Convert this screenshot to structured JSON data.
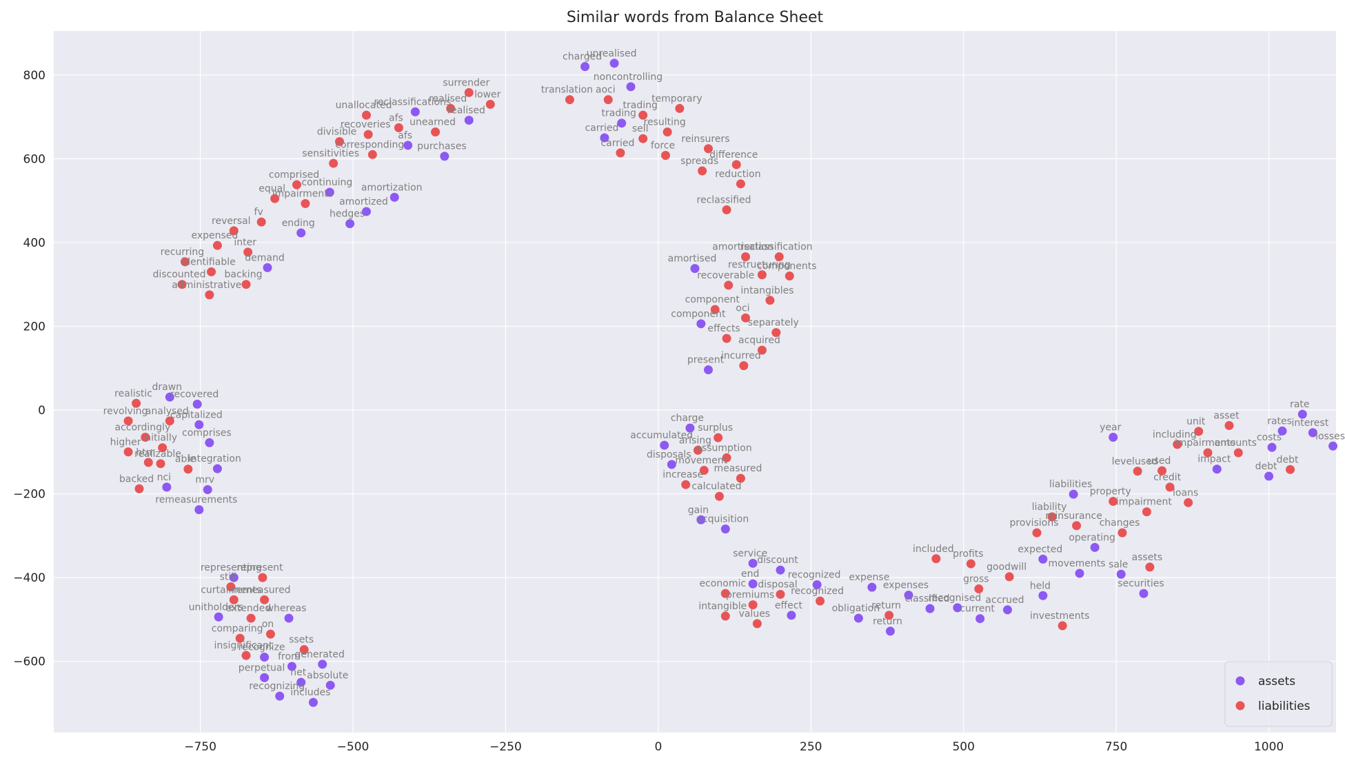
{
  "chart_data": {
    "type": "scatter",
    "title": "Similar words from Balance Sheet",
    "xlabel": "",
    "ylabel": "",
    "xlim": [
      -990,
      1110
    ],
    "ylim": [
      -770,
      905
    ],
    "xticks": [
      -750,
      -500,
      -250,
      0,
      250,
      500,
      750,
      1000
    ],
    "xtick_labels": [
      "−750",
      "−500",
      "−250",
      "0",
      "250",
      "500",
      "750",
      "1000"
    ],
    "yticks": [
      -600,
      -400,
      -200,
      0,
      200,
      400,
      600,
      800
    ],
    "ytick_labels": [
      "−600",
      "−400",
      "−200",
      "0",
      "200",
      "400",
      "600",
      "800"
    ],
    "grid": true,
    "background": "#eaeaf2",
    "grid_color": "#ffffff",
    "legend_position": "lower right",
    "series": [
      {
        "name": "assets",
        "color": "#7b3ff2",
        "points": [
          {
            "label": "charged",
            "x": -120,
            "y": 820
          },
          {
            "label": "unrealised",
            "x": -72,
            "y": 828
          },
          {
            "label": "noncontrolling",
            "x": -45,
            "y": 772
          },
          {
            "label": "trading",
            "x": -60,
            "y": 685
          },
          {
            "label": "carried",
            "x": -88,
            "y": 650
          },
          {
            "label": "reclassifications",
            "x": -398,
            "y": 712
          },
          {
            "label": "realised",
            "x": -310,
            "y": 692
          },
          {
            "label": "afs",
            "x": -410,
            "y": 632
          },
          {
            "label": "purchases",
            "x": -350,
            "y": 606
          },
          {
            "label": "continuing",
            "x": -538,
            "y": 520
          },
          {
            "label": "amortization",
            "x": -432,
            "y": 508
          },
          {
            "label": "amortized",
            "x": -478,
            "y": 474
          },
          {
            "label": "hedges",
            "x": -505,
            "y": 445
          },
          {
            "label": "ending",
            "x": -585,
            "y": 423
          },
          {
            "label": "demand",
            "x": -640,
            "y": 340
          },
          {
            "label": "amortised",
            "x": 60,
            "y": 338
          },
          {
            "label": "component",
            "x": 70,
            "y": 206
          },
          {
            "label": "present",
            "x": 82,
            "y": 96
          },
          {
            "label": "drawn",
            "x": -800,
            "y": 31
          },
          {
            "label": "recovered",
            "x": -755,
            "y": 14
          },
          {
            "label": "capitalized",
            "x": -752,
            "y": -35
          },
          {
            "label": "comprises",
            "x": -735,
            "y": -78
          },
          {
            "label": "integration",
            "x": -722,
            "y": -140
          },
          {
            "label": "nci",
            "x": -805,
            "y": -184
          },
          {
            "label": "mrv",
            "x": -738,
            "y": -190
          },
          {
            "label": "remeasurements",
            "x": -752,
            "y": -238
          },
          {
            "label": "charge",
            "x": 52,
            "y": -43
          },
          {
            "label": "accumulated",
            "x": 10,
            "y": -84
          },
          {
            "label": "disposals",
            "x": 22,
            "y": -130
          },
          {
            "label": "gain",
            "x": 70,
            "y": -262
          },
          {
            "label": "acquisition",
            "x": 110,
            "y": -284
          },
          {
            "label": "representing",
            "x": -695,
            "y": -400
          },
          {
            "label": "unitholders",
            "x": -720,
            "y": -494
          },
          {
            "label": "whereas",
            "x": -605,
            "y": -497
          },
          {
            "label": "recognize",
            "x": -645,
            "y": -590
          },
          {
            "label": "generated",
            "x": -550,
            "y": -607
          },
          {
            "label": "from",
            "x": -600,
            "y": -612
          },
          {
            "label": "perpetual",
            "x": -645,
            "y": -639
          },
          {
            "label": "net",
            "x": -585,
            "y": -650
          },
          {
            "label": "absolute",
            "x": -537,
            "y": -657
          },
          {
            "label": "recognizing",
            "x": -620,
            "y": -683
          },
          {
            "label": "includes",
            "x": -565,
            "y": -698
          },
          {
            "label": "service",
            "x": 155,
            "y": -366
          },
          {
            "label": "discount",
            "x": 200,
            "y": -382
          },
          {
            "label": "end",
            "x": 155,
            "y": -415
          },
          {
            "label": "recognized",
            "x": 260,
            "y": -417
          },
          {
            "label": "expense",
            "x": 350,
            "y": -423
          },
          {
            "label": "expenses",
            "x": 410,
            "y": -442
          },
          {
            "label": "classified",
            "x": 445,
            "y": -474
          },
          {
            "label": "recognised",
            "x": 490,
            "y": -472
          },
          {
            "label": "effect",
            "x": 218,
            "y": -490
          },
          {
            "label": "obligation",
            "x": 328,
            "y": -497
          },
          {
            "label": "current",
            "x": 527,
            "y": -498
          },
          {
            "label": "accrued",
            "x": 572,
            "y": -477
          },
          {
            "label": "return",
            "x": 380,
            "y": -528
          },
          {
            "label": "expected",
            "x": 630,
            "y": -356
          },
          {
            "label": "movements",
            "x": 690,
            "y": -390
          },
          {
            "label": "held",
            "x": 630,
            "y": -443
          },
          {
            "label": "operating",
            "x": 715,
            "y": -328
          },
          {
            "label": "liabilities",
            "x": 680,
            "y": -201
          },
          {
            "label": "sale",
            "x": 758,
            "y": -392
          },
          {
            "label": "securities",
            "x": 795,
            "y": -438
          },
          {
            "label": "year",
            "x": 745,
            "y": -65
          },
          {
            "label": "impact",
            "x": 915,
            "y": -141
          },
          {
            "label": "costs",
            "x": 1005,
            "y": -89
          },
          {
            "label": "debt",
            "x": 1000,
            "y": -158
          },
          {
            "label": "rates",
            "x": 1022,
            "y": -50
          },
          {
            "label": "rate",
            "x": 1055,
            "y": -10
          },
          {
            "label": "interest",
            "x": 1072,
            "y": -54
          },
          {
            "label": "losses",
            "x": 1105,
            "y": -86
          }
        ]
      },
      {
        "name": "liabilities",
        "color": "#e8393a",
        "points": [
          {
            "label": "translation",
            "x": -145,
            "y": 741
          },
          {
            "label": "aoci",
            "x": -82,
            "y": 741
          },
          {
            "label": "temporary",
            "x": 35,
            "y": 720
          },
          {
            "label": "lower",
            "x": -275,
            "y": 730
          },
          {
            "label": "surrender",
            "x": -310,
            "y": 758
          },
          {
            "label": "trading",
            "x": -25,
            "y": 704
          },
          {
            "label": "resulting",
            "x": 15,
            "y": 664
          },
          {
            "label": "sell",
            "x": -25,
            "y": 648
          },
          {
            "label": "carried",
            "x": -62,
            "y": 614
          },
          {
            "label": "force",
            "x": 12,
            "y": 608
          },
          {
            "label": "reinsurers",
            "x": 82,
            "y": 624
          },
          {
            "label": "difference",
            "x": 128,
            "y": 586
          },
          {
            "label": "spreads",
            "x": 72,
            "y": 571
          },
          {
            "label": "reduction",
            "x": 135,
            "y": 540
          },
          {
            "label": "unallocated",
            "x": -478,
            "y": 704
          },
          {
            "label": "realised",
            "x": -340,
            "y": 720
          },
          {
            "label": "afs",
            "x": -425,
            "y": 674
          },
          {
            "label": "unearned",
            "x": -365,
            "y": 664
          },
          {
            "label": "recoveries",
            "x": -475,
            "y": 658
          },
          {
            "label": "divisible",
            "x": -522,
            "y": 641
          },
          {
            "label": "corresponding",
            "x": -468,
            "y": 610
          },
          {
            "label": "sensitivities",
            "x": -532,
            "y": 589
          },
          {
            "label": "comprised",
            "x": -592,
            "y": 538
          },
          {
            "label": "equal",
            "x": -628,
            "y": 505
          },
          {
            "label": "impairments",
            "x": -578,
            "y": 493
          },
          {
            "label": "fv",
            "x": -650,
            "y": 449
          },
          {
            "label": "reversal",
            "x": -695,
            "y": 428
          },
          {
            "label": "expensed",
            "x": -722,
            "y": 393
          },
          {
            "label": "inter",
            "x": -672,
            "y": 377
          },
          {
            "label": "recurring",
            "x": -775,
            "y": 354
          },
          {
            "label": "identifiable",
            "x": -732,
            "y": 330
          },
          {
            "label": "discounted",
            "x": -780,
            "y": 300
          },
          {
            "label": "backing",
            "x": -675,
            "y": 300
          },
          {
            "label": "administrative",
            "x": -735,
            "y": 275
          },
          {
            "label": "reclassified",
            "x": 112,
            "y": 478
          },
          {
            "label": "amortisation",
            "x": 143,
            "y": 366
          },
          {
            "label": "reclassification",
            "x": 198,
            "y": 366
          },
          {
            "label": "restructuring",
            "x": 170,
            "y": 323
          },
          {
            "label": "components",
            "x": 215,
            "y": 320
          },
          {
            "label": "recoverable",
            "x": 115,
            "y": 298
          },
          {
            "label": "intangibles",
            "x": 183,
            "y": 262
          },
          {
            "label": "component",
            "x": 93,
            "y": 240
          },
          {
            "label": "oci",
            "x": 143,
            "y": 220
          },
          {
            "label": "separately",
            "x": 193,
            "y": 185
          },
          {
            "label": "effects",
            "x": 112,
            "y": 171
          },
          {
            "label": "acquired",
            "x": 170,
            "y": 143
          },
          {
            "label": "incurred",
            "x": 140,
            "y": 106
          },
          {
            "label": "realistic",
            "x": -855,
            "y": 16
          },
          {
            "label": "revolving",
            "x": -868,
            "y": -26
          },
          {
            "label": "analysed",
            "x": -800,
            "y": -26
          },
          {
            "label": "accordingly",
            "x": -840,
            "y": -65
          },
          {
            "label": "higher",
            "x": -868,
            "y": -100
          },
          {
            "label": "initially",
            "x": -812,
            "y": -90
          },
          {
            "label": "htm",
            "x": -835,
            "y": -125
          },
          {
            "label": "realizable",
            "x": -815,
            "y": -128
          },
          {
            "label": "able",
            "x": -770,
            "y": -141
          },
          {
            "label": "backed",
            "x": -850,
            "y": -188
          },
          {
            "label": "surplus",
            "x": 98,
            "y": -66
          },
          {
            "label": "assumption",
            "x": 112,
            "y": -114
          },
          {
            "label": "arising",
            "x": 65,
            "y": -96
          },
          {
            "label": "movement",
            "x": 75,
            "y": -144
          },
          {
            "label": "measured",
            "x": 135,
            "y": -163
          },
          {
            "label": "increase",
            "x": 45,
            "y": -178
          },
          {
            "label": "calculated",
            "x": 100,
            "y": -206
          },
          {
            "label": "still",
            "x": -700,
            "y": -422
          },
          {
            "label": "represent",
            "x": -648,
            "y": -400
          },
          {
            "label": "curtailments",
            "x": -695,
            "y": -453
          },
          {
            "label": "remeasured",
            "x": -645,
            "y": -453
          },
          {
            "label": "extended",
            "x": -667,
            "y": -497
          },
          {
            "label": "comparing",
            "x": -685,
            "y": -545
          },
          {
            "label": "on",
            "x": -635,
            "y": -535
          },
          {
            "label": "insignificant",
            "x": -675,
            "y": -586
          },
          {
            "label": "ssets",
            "x": -580,
            "y": -572
          },
          {
            "label": "economic",
            "x": 110,
            "y": -438
          },
          {
            "label": "disposal",
            "x": 200,
            "y": -440
          },
          {
            "label": "premiums",
            "x": 155,
            "y": -465
          },
          {
            "label": "recognized",
            "x": 265,
            "y": -456
          },
          {
            "label": "intangible",
            "x": 110,
            "y": -492
          },
          {
            "label": "values",
            "x": 162,
            "y": -510
          },
          {
            "label": "return",
            "x": 378,
            "y": -490
          },
          {
            "label": "included",
            "x": 455,
            "y": -355
          },
          {
            "label": "profits",
            "x": 512,
            "y": -367
          },
          {
            "label": "goodwill",
            "x": 575,
            "y": -398
          },
          {
            "label": "gross",
            "x": 525,
            "y": -427
          },
          {
            "label": "investments",
            "x": 662,
            "y": -515
          },
          {
            "label": "liability",
            "x": 645,
            "y": -255
          },
          {
            "label": "property",
            "x": 745,
            "y": -218
          },
          {
            "label": "impairment",
            "x": 800,
            "y": -243
          },
          {
            "label": "reinsurance",
            "x": 685,
            "y": -276
          },
          {
            "label": "changes",
            "x": 760,
            "y": -293
          },
          {
            "label": "provisions",
            "x": 620,
            "y": -293
          },
          {
            "label": "assets",
            "x": 805,
            "y": -375
          },
          {
            "label": "levelused",
            "x": 785,
            "y": -146
          },
          {
            "label": "credit",
            "x": 838,
            "y": -184
          },
          {
            "label": "loans",
            "x": 868,
            "y": -221
          },
          {
            "label": "including",
            "x": 850,
            "y": -82
          },
          {
            "label": "unit",
            "x": 885,
            "y": -51
          },
          {
            "label": "impairments",
            "x": 900,
            "y": -102
          },
          {
            "label": "asset",
            "x": 935,
            "y": -37
          },
          {
            "label": "amounts",
            "x": 950,
            "y": -102
          },
          {
            "label": "debt",
            "x": 1035,
            "y": -142
          },
          {
            "label": "used",
            "x": 825,
            "y": -145
          }
        ]
      }
    ]
  }
}
